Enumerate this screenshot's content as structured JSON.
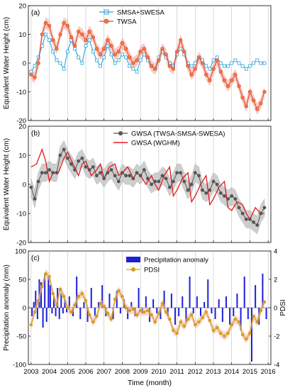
{
  "xaxis": {
    "label": "Time (month)",
    "ticks": [
      "2003",
      "2004",
      "2005",
      "2006",
      "2007",
      "2008",
      "2009",
      "2010",
      "2011",
      "2012",
      "2013",
      "2014",
      "2015",
      "2016"
    ],
    "range": [
      2002.85,
      2016.15
    ]
  },
  "colors": {
    "smsa_swesa": "#2aa3d8",
    "twsa": "#e8432b",
    "gwsa": "#555555",
    "gwsa_wghm": "#e31a1c",
    "precip": "#1f1fd8",
    "pdsi": "#d4a017",
    "band": "#bdbdbd",
    "band_red": "#f2b6ad"
  },
  "chart_data": [
    {
      "type": "line",
      "panel_label": "(a)",
      "ylabel": "Equivalent Water Height (cm)",
      "ylim": [
        -20,
        20
      ],
      "yticks": [
        "-20",
        "-10",
        "0",
        "10",
        "20"
      ],
      "legend_position": "top-center",
      "series": [
        {
          "name": "SMSA+SWESA",
          "x": [
            2003.0,
            2003.2,
            2003.4,
            2003.6,
            2003.8,
            2004.0,
            2004.2,
            2004.4,
            2004.6,
            2004.8,
            2005.0,
            2005.2,
            2005.4,
            2005.6,
            2005.8,
            2006.0,
            2006.2,
            2006.4,
            2006.6,
            2006.8,
            2007.0,
            2007.2,
            2007.4,
            2007.6,
            2007.8,
            2008.0,
            2008.2,
            2008.4,
            2008.6,
            2008.8,
            2009.0,
            2009.2,
            2009.4,
            2009.6,
            2009.8,
            2010.0,
            2010.2,
            2010.4,
            2010.6,
            2010.8,
            2011.0,
            2011.2,
            2011.4,
            2011.6,
            2011.8,
            2012.0,
            2012.2,
            2012.4,
            2012.6,
            2012.8,
            2013.0,
            2013.2,
            2013.4,
            2013.6,
            2013.8,
            2014.0,
            2014.2,
            2014.4,
            2014.6,
            2014.8,
            2015.0,
            2015.2,
            2015.4,
            2015.6,
            2015.8
          ],
          "values": [
            -3,
            -1,
            2,
            6,
            10,
            8,
            4,
            1,
            0,
            -2,
            4,
            8,
            5,
            2,
            0,
            6,
            8,
            4,
            1,
            -1,
            2,
            6,
            3,
            0,
            1,
            3,
            2,
            -1,
            -2,
            -3,
            1,
            3,
            1,
            -1,
            -2,
            2,
            4,
            2,
            0,
            -1,
            3,
            5,
            3,
            0,
            -1,
            0,
            2,
            1,
            -1,
            -2,
            1,
            2,
            0,
            -1,
            -1,
            0,
            1,
            0,
            -1,
            -2,
            -1,
            0,
            1,
            0,
            0
          ]
        },
        {
          "name": "TWSA",
          "x": [
            2003.0,
            2003.2,
            2003.4,
            2003.6,
            2003.8,
            2004.0,
            2004.2,
            2004.4,
            2004.6,
            2004.8,
            2005.0,
            2005.2,
            2005.4,
            2005.6,
            2005.8,
            2006.0,
            2006.2,
            2006.4,
            2006.6,
            2006.8,
            2007.0,
            2007.2,
            2007.4,
            2007.6,
            2007.8,
            2008.0,
            2008.2,
            2008.4,
            2008.6,
            2008.8,
            2009.0,
            2009.2,
            2009.4,
            2009.6,
            2009.8,
            2010.0,
            2010.2,
            2010.4,
            2010.6,
            2010.8,
            2011.0,
            2011.2,
            2011.4,
            2011.6,
            2011.8,
            2012.0,
            2012.2,
            2012.4,
            2012.6,
            2012.8,
            2013.0,
            2013.2,
            2013.4,
            2013.6,
            2013.8,
            2014.0,
            2014.2,
            2014.4,
            2014.6,
            2014.8,
            2015.0,
            2015.2,
            2015.4,
            2015.6,
            2015.8
          ],
          "values": [
            -4,
            -5,
            0,
            10,
            14,
            13,
            8,
            5,
            10,
            14,
            13,
            9,
            6,
            11,
            10,
            8,
            11,
            9,
            5,
            3,
            5,
            8,
            6,
            3,
            4,
            7,
            5,
            2,
            0,
            1,
            4,
            5,
            2,
            -1,
            -2,
            1,
            5,
            3,
            -1,
            -2,
            4,
            8,
            4,
            -1,
            -4,
            -2,
            2,
            0,
            -4,
            -6,
            -2,
            1,
            -3,
            -6,
            -8,
            -6,
            -4,
            -8,
            -12,
            -15,
            -10,
            -13,
            -16,
            -14,
            -10
          ]
        },
        {
          "name": "",
          "role": "TWSA uncertainty band",
          "half_width": 2.0
        }
      ]
    },
    {
      "type": "line",
      "panel_label": "(b)",
      "ylabel": "Equivalent Water Height (cm)",
      "ylim": [
        -20,
        20
      ],
      "yticks": [
        "-20",
        "-10",
        "0",
        "10",
        "20"
      ],
      "legend_position": "top-right",
      "series": [
        {
          "name": "GWSA (TWSA-SMSA-SWESA)",
          "x": [
            2003.0,
            2003.2,
            2003.4,
            2003.6,
            2003.8,
            2004.0,
            2004.2,
            2004.4,
            2004.6,
            2004.8,
            2005.0,
            2005.2,
            2005.4,
            2005.6,
            2005.8,
            2006.0,
            2006.2,
            2006.4,
            2006.6,
            2006.8,
            2007.0,
            2007.2,
            2007.4,
            2007.6,
            2007.8,
            2008.0,
            2008.2,
            2008.4,
            2008.6,
            2008.8,
            2009.0,
            2009.2,
            2009.4,
            2009.6,
            2009.8,
            2010.0,
            2010.2,
            2010.4,
            2010.6,
            2010.8,
            2011.0,
            2011.2,
            2011.4,
            2011.6,
            2011.8,
            2012.0,
            2012.2,
            2012.4,
            2012.6,
            2012.8,
            2013.0,
            2013.2,
            2013.4,
            2013.6,
            2013.8,
            2014.0,
            2014.2,
            2014.4,
            2014.6,
            2014.8,
            2015.0,
            2015.2,
            2015.4,
            2015.6,
            2015.8
          ],
          "values": [
            -1,
            -5,
            1,
            4,
            4,
            5,
            4,
            4,
            10,
            12,
            9,
            7,
            5,
            8,
            9,
            6,
            5,
            6,
            3,
            4,
            2,
            4,
            5,
            3,
            1,
            4,
            3,
            3,
            2,
            4,
            3,
            5,
            2,
            0,
            1,
            1,
            3,
            2,
            -1,
            1,
            4,
            4,
            1,
            -2,
            0,
            4,
            3,
            -2,
            -3,
            -2,
            1,
            0,
            -3,
            -4,
            -5,
            -4,
            -5,
            -8,
            -10,
            -12,
            -12,
            -13,
            -14,
            -10,
            -8
          ]
        },
        {
          "name": "GWSA (WGHM)",
          "x": [
            2003.0,
            2003.3,
            2003.6,
            2003.8,
            2004.0,
            2004.2,
            2004.5,
            2004.8,
            2005.0,
            2005.3,
            2005.6,
            2005.8,
            2006.0,
            2006.3,
            2006.6,
            2006.8,
            2007.0,
            2007.3,
            2007.6,
            2007.8,
            2008.0,
            2008.3,
            2008.6,
            2008.8,
            2009.0,
            2009.3,
            2009.6,
            2009.8,
            2010.0,
            2010.3,
            2010.6,
            2010.8,
            2011.0,
            2011.3,
            2011.6,
            2011.8,
            2012.0,
            2012.3,
            2012.6,
            2012.8,
            2013.0,
            2013.3,
            2013.6,
            2013.8,
            2014.0,
            2014.3,
            2014.6,
            2014.8,
            2015.0,
            2015.3,
            2015.6,
            2015.8
          ],
          "values": [
            6,
            7,
            12,
            8,
            1,
            4,
            4,
            9,
            11,
            7,
            3,
            7,
            8,
            3,
            5,
            7,
            2,
            6,
            7,
            3,
            4,
            6,
            2,
            4,
            3,
            0,
            3,
            0,
            -2,
            3,
            6,
            -4,
            -2,
            2,
            4,
            -6,
            -4,
            0,
            3,
            -7,
            -5,
            -1,
            1,
            -8,
            -9,
            -6,
            -7,
            -10,
            -12,
            -8,
            -10,
            -10
          ]
        },
        {
          "name": "",
          "role": "GWSA uncertainty band",
          "half_width": 3.0
        }
      ]
    },
    {
      "type": "bar",
      "panel_label": "(c)",
      "ylabel": "Precipitation anomaly (mm)",
      "ylabel_right": "PDSI",
      "ylim": [
        -100,
        100
      ],
      "ylim_right": [
        -4,
        4
      ],
      "yticks": [
        "-100",
        "-50",
        "0",
        "50",
        "100"
      ],
      "yticks_right": [
        "-4",
        "-2",
        "0",
        "2",
        "4"
      ],
      "legend_position": "top-center",
      "series": [
        {
          "name": "Precipitation anomaly",
          "x": [
            2003.05,
            2003.15,
            2003.25,
            2003.35,
            2003.45,
            2003.55,
            2003.65,
            2003.75,
            2003.85,
            2003.95,
            2004.05,
            2004.15,
            2004.25,
            2004.35,
            2004.45,
            2004.55,
            2004.65,
            2004.75,
            2004.85,
            2004.95,
            2005.1,
            2005.3,
            2005.5,
            2005.7,
            2005.9,
            2006.1,
            2006.3,
            2006.5,
            2006.7,
            2006.9,
            2007.1,
            2007.3,
            2007.5,
            2007.7,
            2007.9,
            2008.1,
            2008.3,
            2008.5,
            2008.7,
            2008.9,
            2009.1,
            2009.3,
            2009.5,
            2009.7,
            2009.9,
            2010.1,
            2010.3,
            2010.5,
            2010.7,
            2010.9,
            2011.1,
            2011.3,
            2011.5,
            2011.7,
            2011.9,
            2012.1,
            2012.3,
            2012.5,
            2012.7,
            2012.9,
            2013.1,
            2013.3,
            2013.5,
            2013.7,
            2013.9,
            2014.1,
            2014.3,
            2014.5,
            2014.7,
            2014.9,
            2015.1,
            2015.3,
            2015.5,
            2015.7,
            2015.9
          ],
          "values": [
            -15,
            10,
            30,
            -20,
            50,
            45,
            -35,
            60,
            -25,
            55,
            40,
            -10,
            20,
            -15,
            35,
            -20,
            25,
            -10,
            15,
            -8,
            20,
            -15,
            55,
            -20,
            10,
            -25,
            35,
            -15,
            10,
            40,
            -15,
            25,
            -20,
            30,
            -10,
            15,
            -20,
            10,
            -15,
            35,
            -10,
            20,
            -25,
            15,
            -10,
            -20,
            30,
            -15,
            25,
            -30,
            -15,
            20,
            -25,
            55,
            -10,
            20,
            -15,
            10,
            50,
            -10,
            -20,
            15,
            -25,
            20,
            -30,
            -15,
            25,
            -40,
            55,
            -20,
            -95,
            40,
            -30,
            60,
            -20
          ]
        },
        {
          "name": "PDSI",
          "role": "right-axis line",
          "x": [
            2003.0,
            2003.2,
            2003.4,
            2003.6,
            2003.8,
            2004.0,
            2004.2,
            2004.4,
            2004.6,
            2004.8,
            2005.0,
            2005.2,
            2005.4,
            2005.6,
            2005.8,
            2006.0,
            2006.2,
            2006.4,
            2006.6,
            2006.8,
            2007.0,
            2007.2,
            2007.4,
            2007.6,
            2007.8,
            2008.0,
            2008.2,
            2008.4,
            2008.6,
            2008.8,
            2009.0,
            2009.2,
            2009.4,
            2009.6,
            2009.8,
            2010.0,
            2010.2,
            2010.4,
            2010.6,
            2010.8,
            2011.0,
            2011.2,
            2011.4,
            2011.6,
            2011.8,
            2012.0,
            2012.2,
            2012.4,
            2012.6,
            2012.8,
            2013.0,
            2013.2,
            2013.4,
            2013.6,
            2013.8,
            2014.0,
            2014.2,
            2014.4,
            2014.6,
            2014.8,
            2015.0,
            2015.2,
            2015.4,
            2015.6,
            2015.8
          ],
          "values": [
            -1.2,
            -0.3,
            0.5,
            1.5,
            2.4,
            2.2,
            1.0,
            0.2,
            1.3,
            0.8,
            0.0,
            -0.3,
            0.2,
            0.8,
            1.0,
            0.5,
            -0.5,
            -1.0,
            -0.6,
            0.3,
            0.1,
            -0.4,
            -0.8,
            0.6,
            1.2,
            0.8,
            0.0,
            -0.2,
            -0.1,
            -0.5,
            -0.2,
            -0.3,
            -0.2,
            -0.5,
            -1.0,
            -0.4,
            0.3,
            -0.3,
            -0.8,
            -1.6,
            -1.8,
            -1.0,
            -1.3,
            -0.8,
            -0.5,
            -1.2,
            -1.0,
            -0.7,
            -0.3,
            -0.9,
            -1.6,
            -1.4,
            -1.8,
            -2.0,
            -1.8,
            -1.2,
            -0.8,
            -1.0,
            -1.9,
            -2.2,
            -1.8,
            -0.6,
            -1.0,
            -0.2,
            0.4
          ]
        }
      ]
    }
  ]
}
